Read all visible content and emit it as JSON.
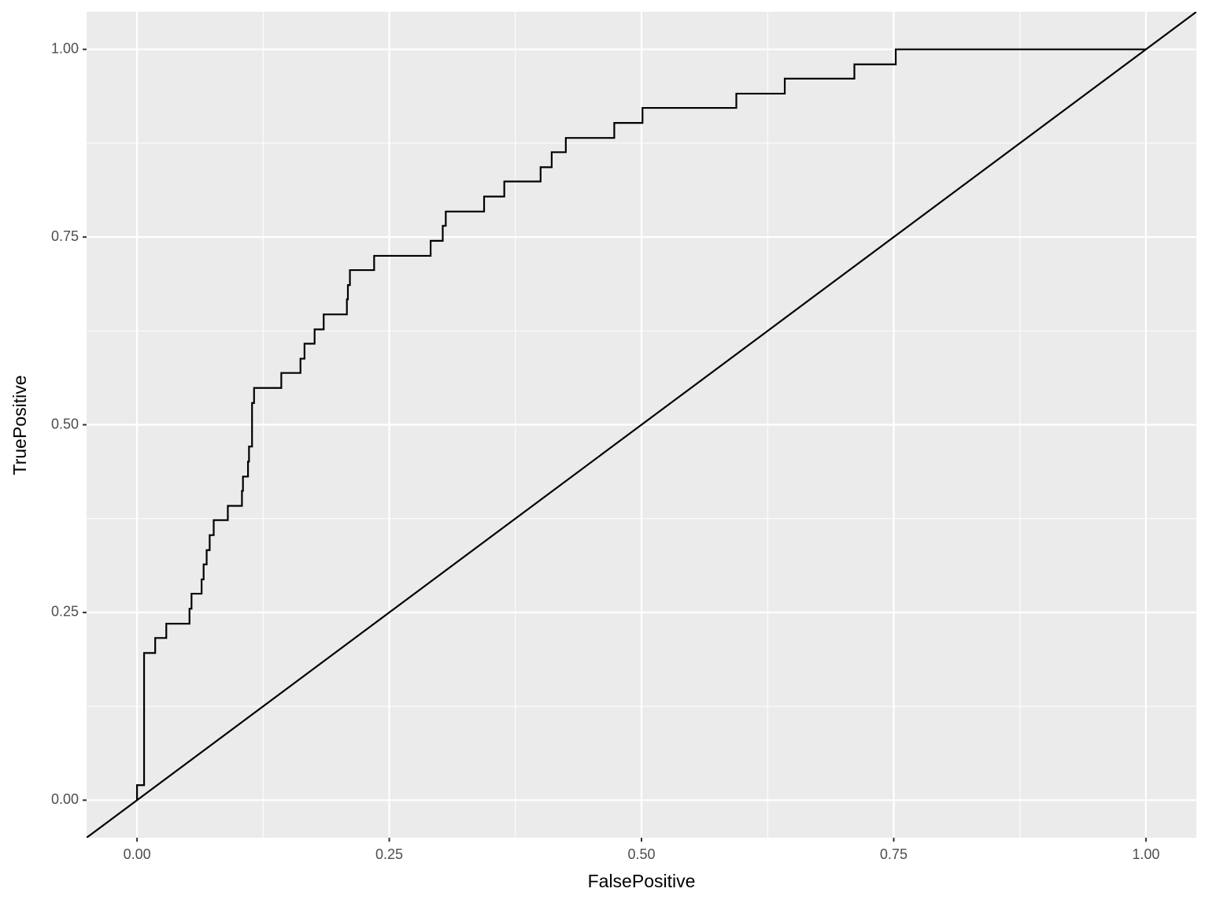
{
  "chart_data": {
    "type": "line",
    "x_label": "FalsePositive",
    "y_label": "TruePositive",
    "xlim": [
      -0.05,
      1.05
    ],
    "ylim": [
      -0.05,
      1.05
    ],
    "xticks": [
      {
        "value": 0,
        "label": "0.00"
      },
      {
        "value": 0.25,
        "label": "0.25"
      },
      {
        "value": 0.5,
        "label": "0.50"
      },
      {
        "value": 0.75,
        "label": "0.75"
      },
      {
        "value": 1,
        "label": "1.00"
      }
    ],
    "yticks": [
      {
        "value": 0,
        "label": "0.00"
      },
      {
        "value": 0.25,
        "label": "0.25"
      },
      {
        "value": 0.5,
        "label": "0.50"
      },
      {
        "value": 0.75,
        "label": "0.75"
      },
      {
        "value": 1,
        "label": "1.00"
      }
    ],
    "x_minor_ticks": [
      0.125,
      0.375,
      0.625,
      0.875
    ],
    "y_minor_ticks": [
      0.125,
      0.375,
      0.625,
      0.875
    ],
    "grid": true,
    "reference_line": {
      "slope": 1,
      "intercept": 0,
      "color": "#000000"
    },
    "series": [
      {
        "color": "#000000",
        "x": [
          0,
          0,
          0.007,
          0.007,
          0.018,
          0.018,
          0.029,
          0.029,
          0.052,
          0.052,
          0.054,
          0.054,
          0.064,
          0.064,
          0.066,
          0.066,
          0.069,
          0.069,
          0.072,
          0.072,
          0.076,
          0.076,
          0.09,
          0.09,
          0.104,
          0.104,
          0.105,
          0.105,
          0.11,
          0.11,
          0.111,
          0.111,
          0.114,
          0.114,
          0.116,
          0.116,
          0.143,
          0.143,
          0.162,
          0.162,
          0.166,
          0.166,
          0.176,
          0.176,
          0.185,
          0.185,
          0.208,
          0.208,
          0.209,
          0.209,
          0.211,
          0.211,
          0.235,
          0.235,
          0.291,
          0.291,
          0.303,
          0.303,
          0.306,
          0.306,
          0.344,
          0.344,
          0.364,
          0.364,
          0.4,
          0.4,
          0.411,
          0.411,
          0.425,
          0.425,
          0.473,
          0.473,
          0.501,
          0.501,
          0.594,
          0.594,
          0.642,
          0.642,
          0.711,
          0.711,
          0.752,
          0.752,
          1.0
        ],
        "values": [
          0,
          0.02,
          0.02,
          0.196,
          0.196,
          0.216,
          0.216,
          0.235,
          0.235,
          0.255,
          0.255,
          0.275,
          0.275,
          0.294,
          0.294,
          0.314,
          0.314,
          0.333,
          0.333,
          0.353,
          0.353,
          0.373,
          0.373,
          0.392,
          0.392,
          0.412,
          0.412,
          0.431,
          0.431,
          0.451,
          0.451,
          0.471,
          0.471,
          0.529,
          0.529,
          0.549,
          0.549,
          0.569,
          0.569,
          0.588,
          0.588,
          0.608,
          0.608,
          0.627,
          0.627,
          0.647,
          0.647,
          0.667,
          0.667,
          0.686,
          0.686,
          0.706,
          0.706,
          0.725,
          0.725,
          0.745,
          0.745,
          0.765,
          0.765,
          0.784,
          0.784,
          0.804,
          0.804,
          0.824,
          0.824,
          0.843,
          0.843,
          0.863,
          0.863,
          0.882,
          0.882,
          0.902,
          0.902,
          0.922,
          0.922,
          0.941,
          0.941,
          0.961,
          0.961,
          0.98,
          0.98,
          1.0,
          1.0
        ]
      }
    ]
  }
}
